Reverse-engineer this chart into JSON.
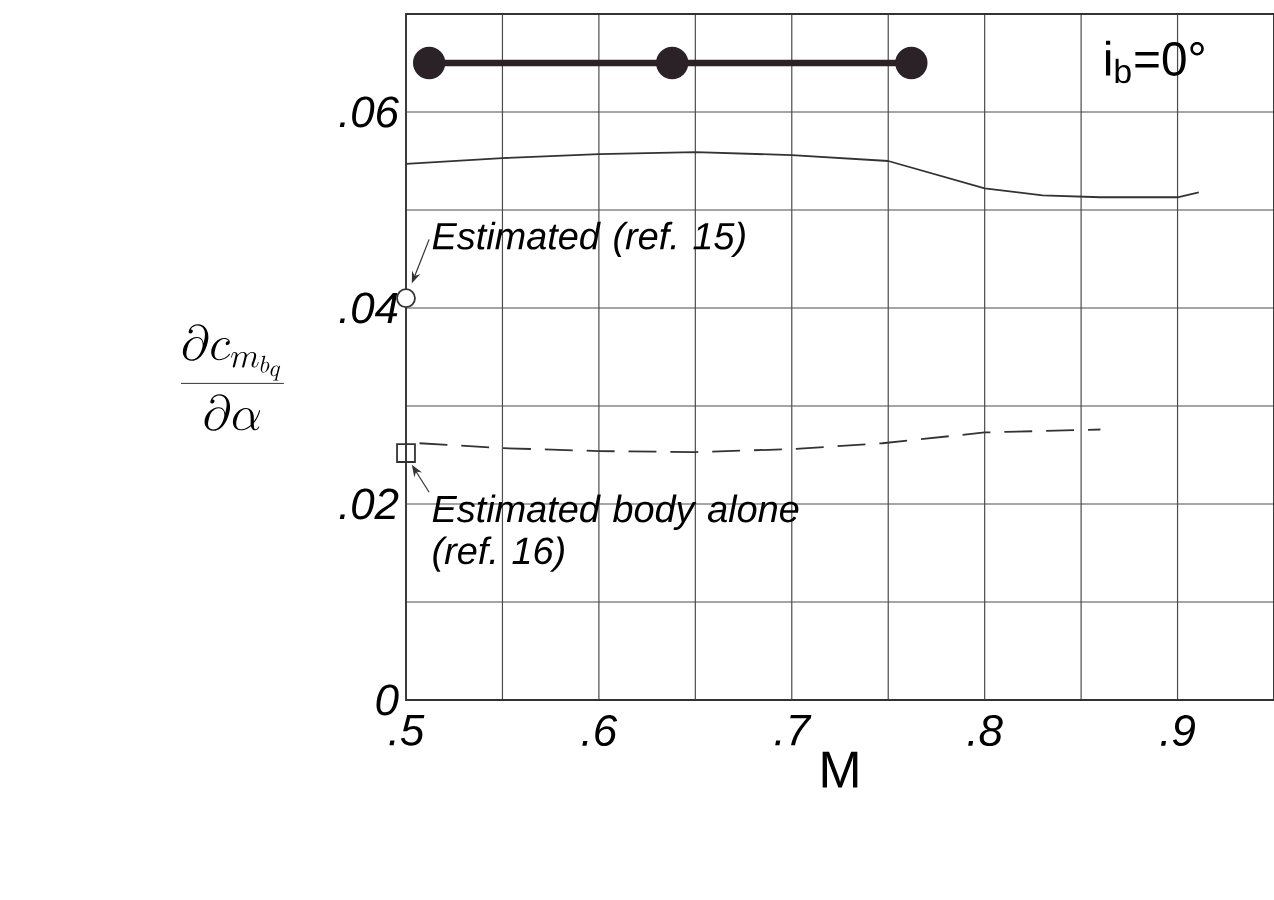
{
  "chart_data": {
    "type": "line",
    "xlabel": "M",
    "ylabel": "\\frac{\\partial c_{m_{b_q}}}{\\partial \\alpha}",
    "xlim": [
      0.5,
      0.95
    ],
    "ylim": [
      0,
      0.07
    ],
    "xticks": [
      {
        "value": 0.5,
        "label": ".5"
      },
      {
        "value": 0.55,
        "label": null
      },
      {
        "value": 0.6,
        "label": ".6"
      },
      {
        "value": 0.65,
        "label": null
      },
      {
        "value": 0.7,
        "label": ".7"
      },
      {
        "value": 0.75,
        "label": null
      },
      {
        "value": 0.8,
        "label": ".8"
      },
      {
        "value": 0.85,
        "label": null
      },
      {
        "value": 0.9,
        "label": ".9"
      },
      {
        "value": 0.95,
        "label": null
      }
    ],
    "yticks": [
      0,
      {
        "value": 0.01,
        "label": null
      },
      {
        "value": 0.02,
        "label": ".02"
      },
      {
        "value": 0.03,
        "label": null
      },
      {
        "value": 0.04,
        "label": ".04"
      },
      {
        "value": 0.05,
        "label": null
      },
      {
        "value": 0.06,
        "label": ".06"
      },
      {
        "value": 0.07,
        "label": null
      }
    ],
    "grid": true,
    "series": [
      {
        "type": "line",
        "color": "#2a2226",
        "line_style": "solid",
        "marker": "circle",
        "x": [
          0.512,
          0.638,
          0.762
        ],
        "values": [
          0.065,
          0.065,
          0.065
        ]
      },
      {
        "color": "#333333",
        "line_style": "solid",
        "marker": "none",
        "x": [
          0.5,
          0.55,
          0.6,
          0.65,
          0.7,
          0.75,
          0.8,
          0.83,
          0.86,
          0.9,
          0.911
        ],
        "values": [
          0.0547,
          0.0553,
          0.0557,
          0.0559,
          0.0556,
          0.055,
          0.0522,
          0.0515,
          0.0513,
          0.0513,
          0.0518
        ]
      },
      {
        "color": "#333333",
        "line_style": "dashed",
        "marker": "none",
        "x": [
          0.507,
          0.55,
          0.6,
          0.65,
          0.7,
          0.747,
          0.8,
          0.86
        ],
        "values": [
          0.0262,
          0.0257,
          0.0254,
          0.0253,
          0.0256,
          0.0262,
          0.0273,
          0.0276
        ]
      },
      {
        "type": "scatter",
        "color": "#333333",
        "marker": "circle",
        "x": [
          0.5
        ],
        "values": [
          0.041
        ]
      },
      {
        "type": "scatter",
        "color": "#333333",
        "marker": "square",
        "x": [
          0.5
        ],
        "values": [
          0.0252
        ]
      }
    ],
    "annotations": [
      {
        "text": "Estimated (ref. 15)",
        "x": 0.5,
        "y": 0.041
      },
      {
        "text": "Estimated body alone (ref. 16)",
        "x": 0.5,
        "y": 0.0252
      },
      "i$_{b}$=0°"
    ]
  }
}
